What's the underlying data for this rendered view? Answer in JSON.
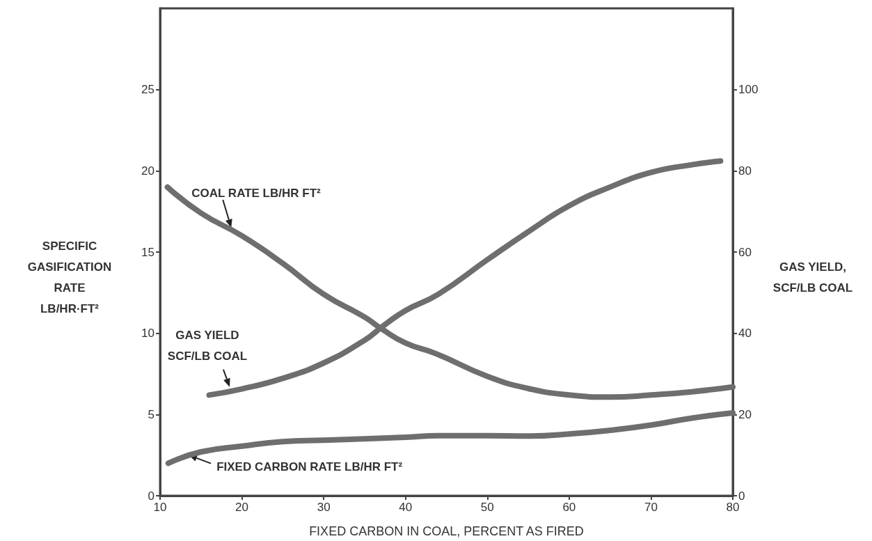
{
  "chart_data": {
    "type": "line",
    "xlabel": "FIXED CARBON IN COAL, PERCENT AS FIRED",
    "ylabel": "SPECIFIC\nGASIFICATION\nRATE\nLB/HR·FT²",
    "y2label": "GAS YIELD,\nSCF/LB COAL",
    "xlim": [
      10,
      80
    ],
    "xticks": [
      10,
      20,
      30,
      40,
      50,
      60,
      70,
      80
    ],
    "ylim": [
      0,
      30
    ],
    "yticks": [
      0,
      5,
      10,
      15,
      20,
      25
    ],
    "y2lim": [
      0,
      120
    ],
    "y2ticks": [
      0,
      20,
      40,
      60,
      80,
      100
    ],
    "grid": false,
    "marker": "none",
    "line_style": "solid",
    "series": [
      {
        "color": "#6e6e6e",
        "x": [
          10.9,
          15,
          20,
          25,
          30,
          35,
          37,
          40,
          43.7,
          50,
          55,
          60,
          65,
          70,
          75,
          80
        ],
        "values": [
          19.0,
          17.4,
          16.0,
          14.3,
          12.4,
          11.0,
          10.3,
          9.4,
          8.75,
          7.35,
          6.6,
          6.2,
          6.07,
          6.2,
          6.4,
          6.7
        ]
      },
      {
        "color": "#6e6e6e",
        "axis": "y2",
        "x": [
          16,
          20,
          25,
          30,
          35,
          37.2,
          40,
          44,
          50,
          55,
          60,
          65,
          70,
          75,
          78.5
        ],
        "values": [
          24.8,
          26.3,
          28.9,
          32.7,
          38.3,
          41.7,
          45.6,
          49.6,
          58.1,
          65,
          71.4,
          76,
          79.6,
          81.5,
          82.4
        ]
      },
      {
        "color": "#6e6e6e",
        "x": [
          11,
          15,
          20,
          25,
          30,
          40,
          44,
          50,
          55,
          60,
          65,
          70,
          75,
          80
        ],
        "values": [
          2.0,
          2.7,
          3.05,
          3.33,
          3.42,
          3.6,
          3.7,
          3.7,
          3.67,
          3.8,
          4.03,
          4.35,
          4.78,
          5.1
        ]
      }
    ],
    "annotations": [
      {
        "text": "COAL RATE LB/HR FT²",
        "x": 18.7,
        "y": 16.5
      },
      {
        "text": "GAS YIELD\nSCF/LB COAL",
        "x": 18.5,
        "y": 6.7
      },
      {
        "text": "FIXED CARBON RATE LB/HR FT²",
        "x": 13.5,
        "y": 2.5
      }
    ]
  }
}
